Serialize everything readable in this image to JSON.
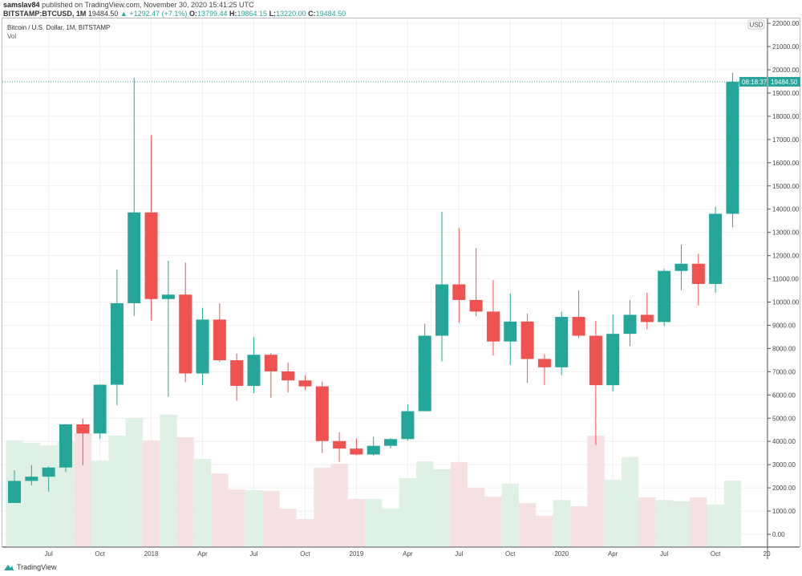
{
  "header": {
    "publisher": "samslav84",
    "published": "published on TradingView.com, November 30, 2020 15:41:25 UTC",
    "symbol": "BITSTAMP:BTCUSD, 1M",
    "last": "19484.50",
    "change": "+1292.47 (+7.1%)",
    "o_label": "O:",
    "o": "13799.44",
    "h_label": "H:",
    "h": "19864.15",
    "l_label": "L:",
    "l": "13220.00",
    "c_label": "C:",
    "c": "19484.50"
  },
  "legend": {
    "title": "Bitcoin / U.S. Dollar, 1M, BITSTAMP",
    "vol": "Vol"
  },
  "axis": {
    "currency": "USD",
    "price_tag": "19484.50",
    "countdown": "08:18:37"
  },
  "brand": "TradingView",
  "colors": {
    "up": "#26a69a",
    "down": "#ef5350",
    "up_vol": "#dff0e4",
    "down_vol": "#f5e1e1"
  },
  "chart_data": {
    "type": "candlestick",
    "title": "Bitcoin / U.S. Dollar, 1M, BITSTAMP",
    "ylim": [
      0,
      22000
    ],
    "yticks": [
      "0.00",
      "1000.00",
      "2000.00",
      "3000.00",
      "4000.00",
      "5000.00",
      "6000.00",
      "7000.00",
      "8000.00",
      "9000.00",
      "10000.00",
      "11000.00",
      "12000.00",
      "13000.00",
      "14000.00",
      "15000.00",
      "16000.00",
      "17000.00",
      "18000.00",
      "19000.00",
      "20000.00",
      "21000.00",
      "22000.00"
    ],
    "xticks": [
      {
        "label": "Jul",
        "index": 2
      },
      {
        "label": "Oct",
        "index": 5
      },
      {
        "label": "2018",
        "index": 8
      },
      {
        "label": "Apr",
        "index": 11
      },
      {
        "label": "Jul",
        "index": 14
      },
      {
        "label": "Oct",
        "index": 17
      },
      {
        "label": "2019",
        "index": 20
      },
      {
        "label": "Apr",
        "index": 23
      },
      {
        "label": "Jul",
        "index": 26
      },
      {
        "label": "Oct",
        "index": 29
      },
      {
        "label": "2020",
        "index": 32
      },
      {
        "label": "Apr",
        "index": 35
      },
      {
        "label": "Jul",
        "index": 38
      },
      {
        "label": "Oct",
        "index": 41
      },
      {
        "label": "20",
        "index": 44
      }
    ],
    "candles": [
      [
        1348,
        2760,
        1348,
        2300,
        4040
      ],
      [
        2300,
        2980,
        2100,
        2480,
        3940
      ],
      [
        2480,
        2920,
        1830,
        2875,
        3830
      ],
      [
        2875,
        4750,
        2680,
        4735,
        4000
      ],
      [
        4735,
        4980,
        2970,
        4340,
        4350
      ],
      [
        4340,
        6450,
        4110,
        6440,
        3180
      ],
      [
        6440,
        11400,
        5550,
        9950,
        4250
      ],
      [
        9950,
        19666,
        9400,
        13860,
        5000
      ],
      [
        13860,
        17180,
        9200,
        10130,
        4040
      ],
      [
        10130,
        11780,
        5920,
        10320,
        5150
      ],
      [
        10320,
        11700,
        6550,
        6925,
        4180
      ],
      [
        6925,
        9750,
        6430,
        9245,
        3250
      ],
      [
        9245,
        9950,
        7420,
        7495,
        2620
      ],
      [
        7495,
        7780,
        5750,
        6390,
        1930
      ],
      [
        6390,
        8490,
        6070,
        7730,
        1900
      ],
      [
        7730,
        7800,
        5880,
        7015,
        1870
      ],
      [
        7015,
        7400,
        6100,
        6625,
        1100
      ],
      [
        6625,
        6850,
        6210,
        6370,
        660
      ],
      [
        6370,
        6580,
        3500,
        4015,
        2870
      ],
      [
        4015,
        4400,
        3120,
        3690,
        3040
      ],
      [
        3690,
        4120,
        3400,
        3435,
        1520
      ],
      [
        3435,
        4200,
        3380,
        3810,
        1520
      ],
      [
        3810,
        4140,
        3700,
        4100,
        1100
      ],
      [
        4100,
        5600,
        4030,
        5300,
        2420
      ],
      [
        5300,
        9070,
        5330,
        8550,
        3140
      ],
      [
        8550,
        13880,
        7450,
        10760,
        2800
      ],
      [
        10760,
        13200,
        9100,
        10090,
        3110
      ],
      [
        10090,
        12330,
        9390,
        9590,
        2000
      ],
      [
        9590,
        10950,
        7700,
        8300,
        1620
      ],
      [
        8300,
        10370,
        7300,
        9160,
        2180
      ],
      [
        9160,
        9500,
        6520,
        7550,
        1350
      ],
      [
        7550,
        7750,
        6430,
        7190,
        800
      ],
      [
        7190,
        9580,
        6860,
        9360,
        1480
      ],
      [
        9360,
        10500,
        8450,
        8550,
        1210
      ],
      [
        8550,
        9190,
        3850,
        6420,
        4250
      ],
      [
        6420,
        9460,
        6160,
        8630,
        2350
      ],
      [
        8630,
        10080,
        8110,
        9450,
        3320
      ],
      [
        9450,
        10400,
        8830,
        9140,
        1590
      ],
      [
        9140,
        11430,
        8970,
        11340,
        1480
      ],
      [
        11340,
        12470,
        10520,
        11650,
        1420
      ],
      [
        11650,
        12080,
        9850,
        10780,
        1590
      ],
      [
        10780,
        14100,
        10400,
        13800,
        1280
      ],
      [
        13799.44,
        19864.15,
        13220,
        19484.5,
        2310
      ]
    ],
    "candle_fields": [
      "open",
      "high",
      "low",
      "close",
      "volume_scaled"
    ]
  }
}
